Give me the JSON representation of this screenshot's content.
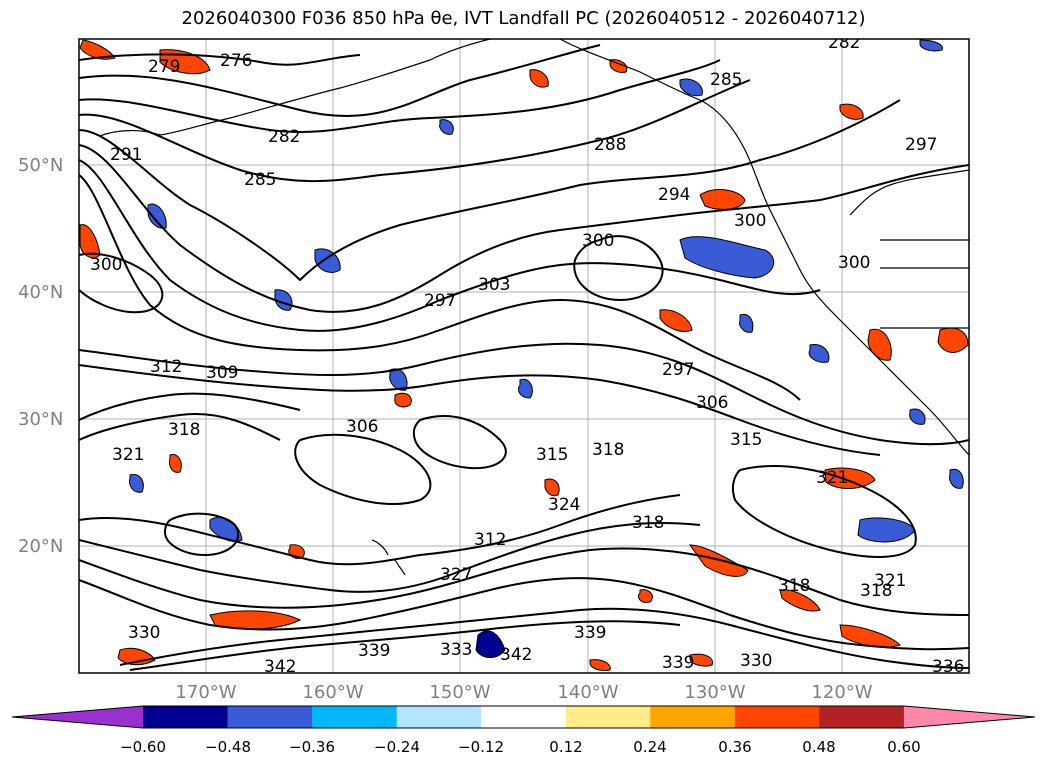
{
  "title": "2026040300 F036 850 hPa θe, IVT Landfall PC (2026040512 - 2026040712)",
  "chart_data": {
    "type": "map",
    "variable": "850 hPa theta-e contours with IVT landfall PC shading",
    "lat_labels": [
      "50°N",
      "40°N",
      "30°N",
      "20°N"
    ],
    "lon_labels": [
      "170°W",
      "160°W",
      "150°W",
      "140°W",
      "130°W",
      "120°W"
    ],
    "colorbar": {
      "ticks": [
        "−0.60",
        "−0.48",
        "−0.36",
        "−0.24",
        "−0.12",
        "0.12",
        "0.24",
        "0.36",
        "0.48",
        "0.60"
      ],
      "colors": [
        "#9b30d0",
        "#000090",
        "#3a5bd6",
        "#00b8f5",
        "#b3e5ff",
        "#ffffff",
        "#ffeb8a",
        "#ffa500",
        "#ff4500",
        "#b22222",
        "#ff88aa"
      ]
    },
    "contour_labels": [
      {
        "text": "276"
      },
      {
        "text": "279"
      },
      {
        "text": "282"
      },
      {
        "text": "282"
      },
      {
        "text": "285"
      },
      {
        "text": "285"
      },
      {
        "text": "288"
      },
      {
        "text": "291"
      },
      {
        "text": "294"
      },
      {
        "text": "297"
      },
      {
        "text": "297"
      },
      {
        "text": "297"
      },
      {
        "text": "300"
      },
      {
        "text": "300"
      },
      {
        "text": "300"
      },
      {
        "text": "300"
      },
      {
        "text": "303"
      },
      {
        "text": "306"
      },
      {
        "text": "306"
      },
      {
        "text": "309"
      },
      {
        "text": "312"
      },
      {
        "text": "312"
      },
      {
        "text": "315"
      },
      {
        "text": "315"
      },
      {
        "text": "318"
      },
      {
        "text": "318"
      },
      {
        "text": "318"
      },
      {
        "text": "318"
      },
      {
        "text": "318"
      },
      {
        "text": "321"
      },
      {
        "text": "321"
      },
      {
        "text": "321"
      },
      {
        "text": "324"
      },
      {
        "text": "327"
      },
      {
        "text": "330"
      },
      {
        "text": "330"
      },
      {
        "text": "339"
      },
      {
        "text": "339"
      },
      {
        "text": "339"
      },
      {
        "text": "342"
      },
      {
        "text": "342"
      },
      {
        "text": "333"
      },
      {
        "text": "336"
      }
    ]
  }
}
